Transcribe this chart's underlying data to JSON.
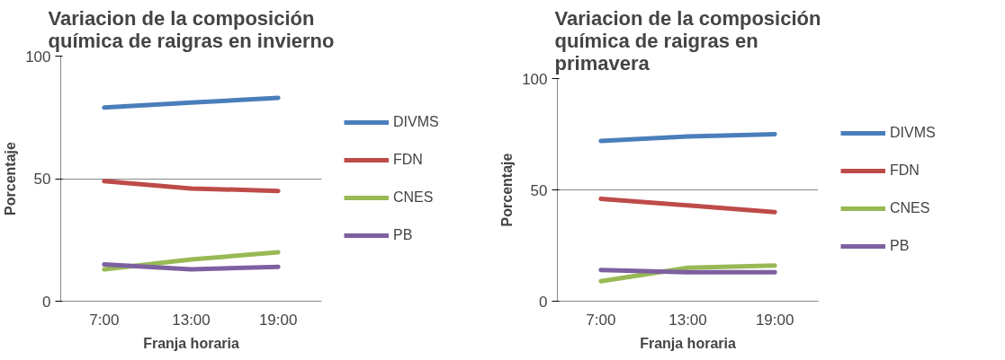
{
  "chart_data": [
    {
      "type": "line",
      "title": "Variacion de la composición química de raigras en invierno",
      "xlabel": "Franja horaria",
      "ylabel": "Porcentaje",
      "categories": [
        "7:00",
        "13:00",
        "19:00"
      ],
      "ylim": [
        0,
        100
      ],
      "yticks": [
        0,
        50,
        100
      ],
      "grid": "y",
      "legend": "right",
      "series": [
        {
          "name": "DIVMS",
          "color": "#4a7ebb",
          "values": [
            79,
            81,
            83
          ]
        },
        {
          "name": "FDN",
          "color": "#be4b48",
          "values": [
            49,
            46,
            45
          ]
        },
        {
          "name": "CNES",
          "color": "#98b954",
          "values": [
            13,
            17,
            20
          ]
        },
        {
          "name": "PB",
          "color": "#7d60a0",
          "values": [
            15,
            13,
            14
          ]
        }
      ]
    },
    {
      "type": "line",
      "title": "Variacion de la composición química de raigras en primavera",
      "xlabel": "Franja horaria",
      "ylabel": "Porcentaje",
      "categories": [
        "7:00",
        "13:00",
        "19:00"
      ],
      "ylim": [
        0,
        100
      ],
      "yticks": [
        0,
        50,
        100
      ],
      "grid": "y",
      "legend": "right",
      "series": [
        {
          "name": "DIVMS",
          "color": "#4a7ebb",
          "values": [
            72,
            74,
            75
          ]
        },
        {
          "name": "FDN",
          "color": "#be4b48",
          "values": [
            46,
            43,
            40
          ]
        },
        {
          "name": "CNES",
          "color": "#98b954",
          "values": [
            9,
            15,
            16
          ]
        },
        {
          "name": "PB",
          "color": "#7d60a0",
          "values": [
            14,
            13,
            13
          ]
        }
      ]
    }
  ]
}
